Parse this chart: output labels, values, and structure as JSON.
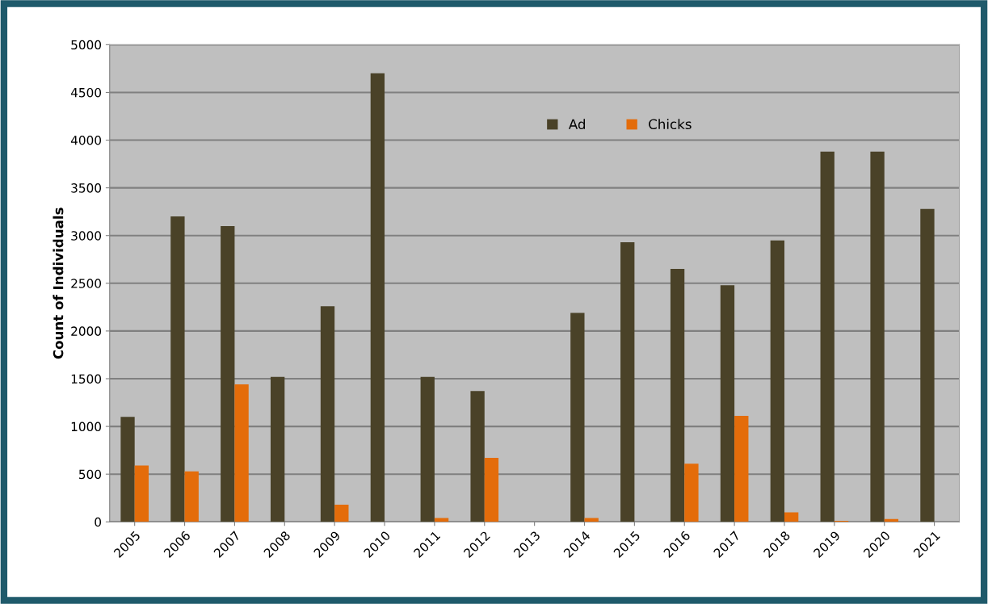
{
  "chart_data": {
    "type": "bar",
    "ylabel": "Count of Individuals",
    "categories": [
      "2005",
      "2006",
      "2007",
      "2008",
      "2009",
      "2010",
      "2011",
      "2012",
      "2013",
      "2014",
      "2015",
      "2016",
      "2017",
      "2018",
      "2019",
      "2020",
      "2021"
    ],
    "series": [
      {
        "name": "Ad",
        "color": "#4a4228",
        "values": [
          1100,
          3200,
          3100,
          1520,
          2260,
          4700,
          1520,
          1370,
          null,
          2190,
          2930,
          2650,
          2480,
          2950,
          3880,
          3880,
          3280
        ]
      },
      {
        "name": "Chicks",
        "color": "#e46c0a",
        "values": [
          590,
          530,
          1440,
          null,
          180,
          null,
          40,
          670,
          null,
          40,
          null,
          610,
          1110,
          100,
          10,
          30,
          null
        ]
      }
    ],
    "ylim": [
      0,
      5000
    ],
    "yticks": [
      0,
      500,
      1000,
      1500,
      2000,
      2500,
      3000,
      3500,
      4000,
      4500,
      5000
    ],
    "grid": "y",
    "legend": "top"
  }
}
